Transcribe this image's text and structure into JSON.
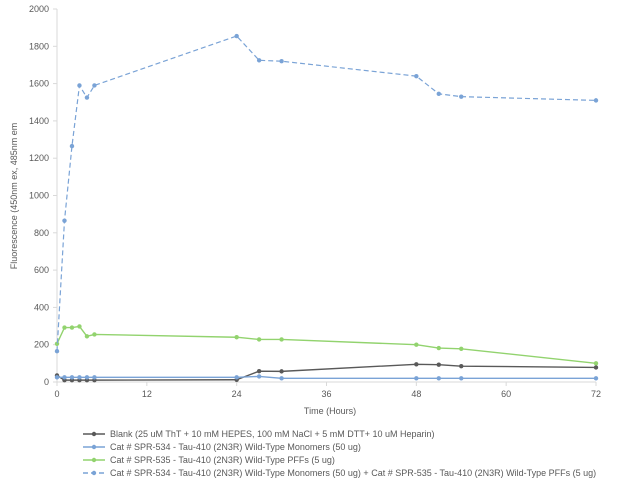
{
  "chart_data": {
    "type": "line",
    "title": "",
    "xlabel": "Time (Hours)",
    "ylabel": "Fluorescence (450nm ex, 485nm em",
    "xlim": [
      0,
      72
    ],
    "ylim": [
      0,
      2000
    ],
    "xticks": [
      "0",
      "12",
      "24",
      "36",
      "48",
      "60",
      "72"
    ],
    "yticks": [
      "0",
      "200",
      "400",
      "600",
      "800",
      "1000",
      "1200",
      "1400",
      "1600",
      "1800",
      "2000"
    ],
    "grid": false,
    "legend_position": "bottom",
    "series": [
      {
        "name": "Blank (25 uM ThT + 10 mM HEPES, 100 mM NaCl + 5 mM DTT+ 10 uM Heparin)",
        "color": "#595959",
        "dash": false,
        "x": [
          0,
          1,
          2,
          3,
          4,
          5,
          24,
          27,
          30,
          48,
          51,
          54,
          72
        ],
        "y": [
          35,
          10,
          10,
          10,
          10,
          10,
          12,
          58,
          57,
          95,
          93,
          85,
          78
        ]
      },
      {
        "name": "Cat # SPR-534 - Tau-410 (2N3R) Wild-Type Monomers (50 ug)",
        "color": "#7aa3d6",
        "dash": false,
        "x": [
          0,
          1,
          2,
          3,
          4,
          5,
          24,
          27,
          30,
          48,
          51,
          54,
          72
        ],
        "y": [
          25,
          25,
          25,
          25,
          25,
          25,
          25,
          30,
          20,
          20,
          20,
          20,
          20
        ]
      },
      {
        "name": "Cat # SPR-535 - Tau-410 (2N3R) Wild-Type PFFs (5 ug)",
        "color": "#92d36e",
        "dash": false,
        "x": [
          0,
          1,
          2,
          3,
          4,
          5,
          24,
          27,
          30,
          48,
          51,
          54,
          72
        ],
        "y": [
          205,
          292,
          292,
          298,
          245,
          255,
          240,
          228,
          228,
          200,
          182,
          178,
          100
        ]
      },
      {
        "name": "Cat # SPR-534 - Tau-410 (2N3R) Wild-Type Monomers (50 ug) + Cat # SPR-535 - Tau-410 (2N3R) Wild-Type PFFs (5 ug)",
        "color": "#7aa3d6",
        "dash": true,
        "x": [
          0,
          1,
          2,
          3,
          4,
          5,
          24,
          27,
          30,
          48,
          51,
          54,
          72
        ],
        "y": [
          165,
          865,
          1265,
          1590,
          1525,
          1590,
          1855,
          1725,
          1720,
          1640,
          1545,
          1530,
          1510
        ]
      }
    ]
  }
}
